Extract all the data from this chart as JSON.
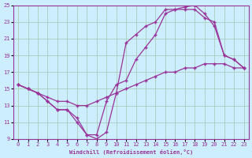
{
  "xlabel": "Windchill (Refroidissement éolien,°C)",
  "bg_color": "#cceeff",
  "grid_color": "#aaccbb",
  "line_color": "#993399",
  "xlim": [
    -0.5,
    23.5
  ],
  "ylim": [
    9,
    25
  ],
  "xticks": [
    0,
    1,
    2,
    3,
    4,
    5,
    6,
    7,
    8,
    9,
    10,
    11,
    12,
    13,
    14,
    15,
    16,
    17,
    18,
    19,
    20,
    21,
    22,
    23
  ],
  "yticks": [
    9,
    11,
    13,
    15,
    17,
    19,
    21,
    23,
    25
  ],
  "line1_x": [
    0,
    1,
    2,
    3,
    4,
    5,
    6,
    7,
    8,
    9,
    10,
    11,
    12,
    13,
    14,
    15,
    16,
    17,
    18,
    19,
    20,
    21,
    22,
    23
  ],
  "line1_y": [
    15.5,
    15.0,
    14.5,
    14.0,
    13.5,
    13.5,
    13.0,
    13.0,
    13.5,
    14.0,
    14.5,
    15.0,
    15.5,
    16.0,
    16.5,
    17.0,
    17.0,
    17.5,
    17.5,
    18.0,
    18.0,
    18.0,
    17.5,
    17.5
  ],
  "line2_x": [
    0,
    1,
    2,
    3,
    4,
    5,
    6,
    7,
    8,
    9,
    10,
    11,
    12,
    13,
    14,
    15,
    16,
    17,
    18,
    19,
    20,
    21,
    22,
    23
  ],
  "line2_y": [
    15.5,
    15.0,
    14.5,
    13.5,
    12.5,
    12.5,
    11.5,
    9.5,
    9.5,
    13.5,
    15.5,
    16.0,
    18.5,
    20.0,
    21.5,
    24.0,
    24.5,
    24.5,
    24.5,
    23.5,
    23.0,
    19.0,
    18.5,
    17.5
  ],
  "line3_x": [
    0,
    1,
    2,
    3,
    4,
    5,
    6,
    7,
    8,
    9,
    10,
    11,
    12,
    13,
    14,
    15,
    16,
    17,
    18,
    19,
    20,
    21,
    22,
    23
  ],
  "line3_y": [
    15.5,
    15.0,
    14.5,
    13.5,
    12.5,
    12.5,
    11.0,
    9.5,
    9.0,
    9.8,
    14.5,
    20.5,
    21.5,
    22.5,
    23.0,
    24.5,
    24.5,
    24.8,
    25.0,
    24.0,
    22.5,
    19.0,
    18.5,
    17.5
  ]
}
